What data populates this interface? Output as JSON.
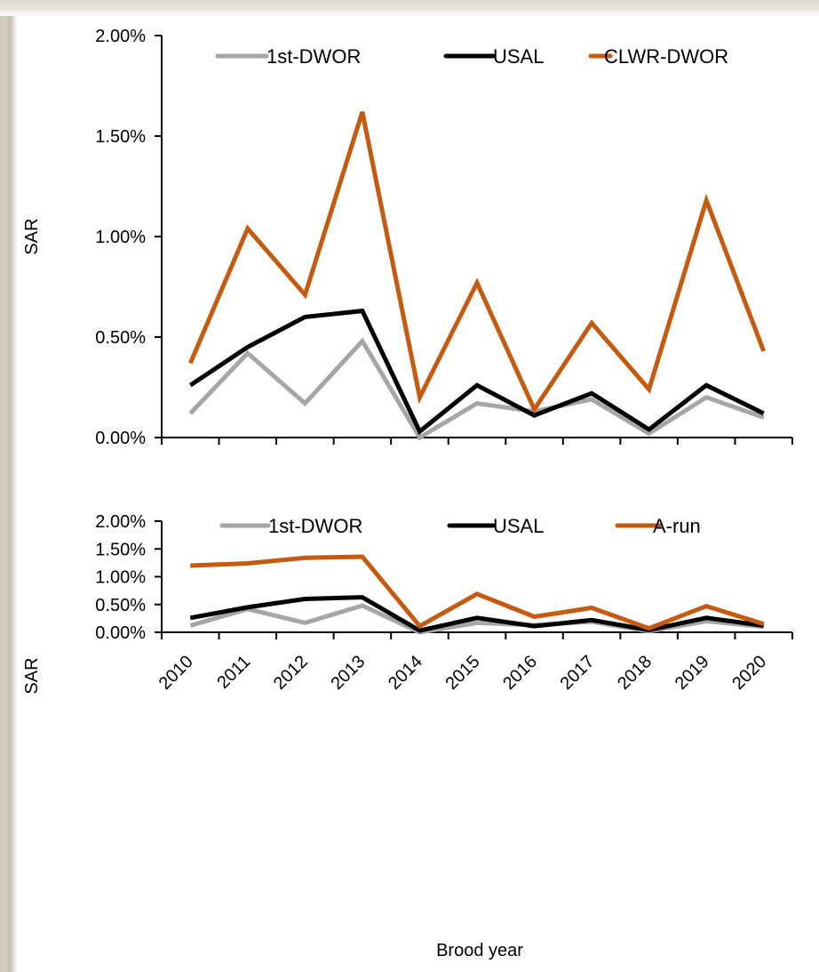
{
  "chart_data": [
    {
      "type": "line",
      "title": "",
      "xlabel": "",
      "ylabel": "SAR",
      "ylim": [
        0,
        0.02
      ],
      "yticks": [
        "0.00%",
        "0.50%",
        "1.00%",
        "1.50%",
        "2.00%"
      ],
      "categories": [
        "2010",
        "2011",
        "2012",
        "2013",
        "2014",
        "2015",
        "2016",
        "2017",
        "2018",
        "2019",
        "2020"
      ],
      "show_x_tick_labels": false,
      "grid": false,
      "legend": "top",
      "series": [
        {
          "name": "1st-DWOR",
          "color": "#a6a6a6",
          "values": [
            0.0012,
            0.0042,
            0.0017,
            0.0048,
            0.0,
            0.0017,
            0.0013,
            0.0019,
            0.0002,
            0.002,
            0.001
          ]
        },
        {
          "name": "USAL",
          "color": "#000000",
          "values": [
            0.0026,
            0.0045,
            0.006,
            0.0063,
            0.0003,
            0.0026,
            0.0011,
            0.0022,
            0.0004,
            0.0026,
            0.0012
          ]
        },
        {
          "name": "CLWR-DWOR",
          "color": "#c55a11",
          "values": [
            0.0037,
            0.0104,
            0.0071,
            0.0162,
            0.002,
            0.0077,
            0.0014,
            0.0057,
            0.0024,
            0.0118,
            0.0043
          ]
        }
      ]
    },
    {
      "type": "line",
      "title": "",
      "xlabel": "Brood year",
      "ylabel": "SAR",
      "ylim": [
        0,
        0.02
      ],
      "yticks": [
        "0.00%",
        "0.50%",
        "1.00%",
        "1.50%",
        "2.00%"
      ],
      "categories": [
        "2010",
        "2011",
        "2012",
        "2013",
        "2014",
        "2015",
        "2016",
        "2017",
        "2018",
        "2019",
        "2020"
      ],
      "show_x_tick_labels": true,
      "grid": false,
      "legend": "top",
      "series": [
        {
          "name": "1st-DWOR",
          "color": "#a6a6a6",
          "values": [
            0.0012,
            0.0042,
            0.0017,
            0.0048,
            0.0,
            0.0017,
            0.0013,
            0.0019,
            0.0002,
            0.002,
            0.001
          ]
        },
        {
          "name": "USAL",
          "color": "#000000",
          "values": [
            0.0026,
            0.0045,
            0.006,
            0.0063,
            0.0003,
            0.0026,
            0.0011,
            0.0022,
            0.0004,
            0.0026,
            0.0012
          ]
        },
        {
          "name": "A-run",
          "color": "#c55a11",
          "values": [
            0.012,
            0.0124,
            0.0134,
            0.0136,
            0.0011,
            0.0069,
            0.0028,
            0.0044,
            0.0007,
            0.0047,
            0.0015
          ]
        }
      ]
    }
  ]
}
